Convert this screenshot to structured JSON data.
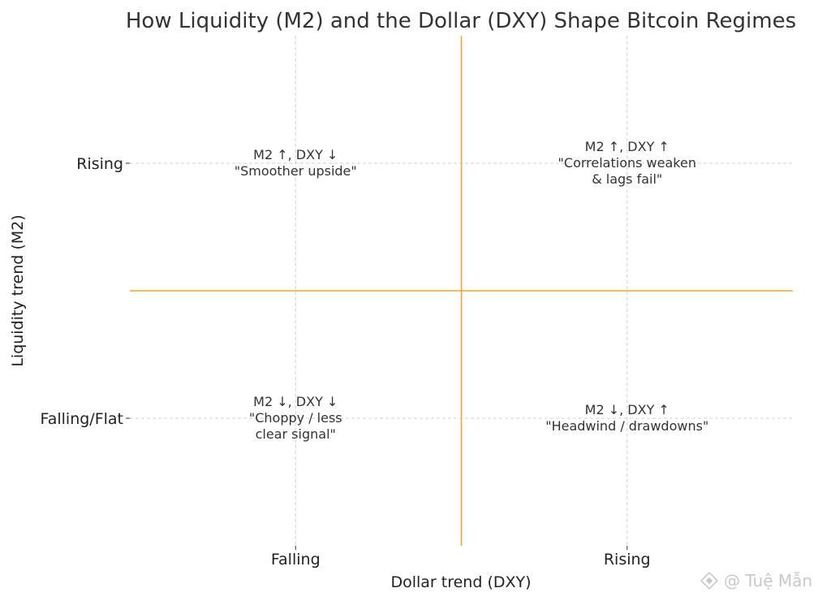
{
  "chart_data": {
    "type": "scatter",
    "title": "How Liquidity (M2) and the Dollar (DXY) Shape Bitcoin Regimes",
    "xlabel": "Dollar trend (DXY)",
    "ylabel": "Liquidity trend (M2)",
    "x_categories": [
      "Falling",
      "Rising"
    ],
    "y_categories": [
      "Falling/Flat",
      "Rising"
    ],
    "xlim": [
      -0.5,
      1.5
    ],
    "ylim": [
      -0.5,
      1.5
    ],
    "grid": true,
    "divider_color": "#f5a623",
    "quadrants": [
      {
        "x": 0,
        "y": 1,
        "lines": [
          "M2 ↑, DXY ↓",
          "\"Smoother upside\""
        ]
      },
      {
        "x": 1,
        "y": 1,
        "lines": [
          "M2 ↑, DXY ↑",
          "\"Correlations weaken",
          "& lags fail\""
        ]
      },
      {
        "x": 0,
        "y": 0,
        "lines": [
          "M2 ↓, DXY ↓",
          "\"Choppy / less",
          "clear signal\""
        ]
      },
      {
        "x": 1,
        "y": 0,
        "lines": [
          "M2 ↓, DXY ↑",
          "\"Headwind / drawdowns\""
        ]
      }
    ]
  },
  "watermark": {
    "text": "@ Tuệ Mẫn"
  }
}
